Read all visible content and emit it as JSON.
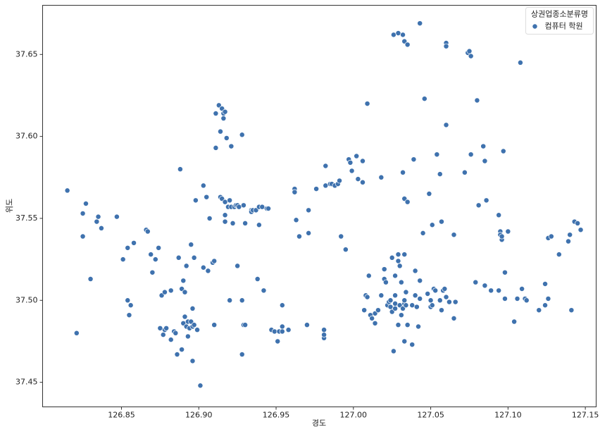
{
  "chart_data": {
    "type": "scatter",
    "xlabel": "경도",
    "ylabel": "위도",
    "legend_title": "상권업종소분류명",
    "legend_loc": "upper right",
    "xlim": [
      126.799,
      127.157
    ],
    "ylim": [
      37.435,
      37.68
    ],
    "xticks": [
      126.85,
      {
        "value": 126.9,
        "label": "126.90"
      },
      126.95,
      {
        "value": 127.0,
        "label": "127.00"
      },
      127.05,
      {
        "value": 127.1,
        "label": "127.10"
      },
      127.15
    ],
    "yticks": [
      37.45,
      {
        "value": 37.5,
        "label": "37.50"
      },
      37.55,
      {
        "value": 37.6,
        "label": "37.60"
      },
      37.65
    ],
    "x": [
      126.815,
      126.821,
      126.825,
      126.825,
      126.827,
      126.83,
      126.834,
      126.835,
      126.837,
      126.847,
      126.851,
      126.854,
      126.854,
      126.855,
      126.856,
      126.858,
      126.866,
      126.867,
      126.869,
      126.87,
      126.872,
      126.874,
      126.875,
      126.876,
      126.877,
      126.878,
      126.878,
      126.879,
      126.882,
      126.882,
      126.884,
      126.885,
      126.886,
      126.887,
      126.888,
      126.889,
      126.889,
      126.89,
      126.89,
      126.891,
      126.891,
      126.892,
      126.892,
      126.893,
      126.893,
      126.894,
      126.895,
      126.895,
      126.896,
      126.896,
      126.896,
      126.897,
      126.897,
      126.898,
      126.899,
      126.901,
      126.903,
      126.903,
      126.905,
      126.906,
      126.907,
      126.909,
      126.91,
      126.91,
      126.911,
      126.911,
      126.913,
      126.914,
      126.914,
      126.915,
      126.915,
      126.916,
      126.916,
      126.917,
      126.917,
      126.917,
      126.917,
      126.918,
      126.919,
      126.92,
      126.92,
      126.921,
      126.921,
      126.922,
      126.923,
      126.924,
      126.925,
      126.925,
      126.926,
      126.928,
      126.928,
      126.928,
      126.929,
      126.929,
      126.93,
      126.93,
      126.934,
      126.934,
      126.935,
      126.937,
      126.938,
      126.939,
      126.939,
      126.941,
      126.942,
      126.944,
      126.945,
      126.947,
      126.949,
      126.951,
      126.952,
      126.954,
      126.954,
      126.954,
      126.958,
      126.962,
      126.962,
      126.963,
      126.965,
      126.97,
      126.971,
      126.971,
      126.976,
      126.981,
      126.981,
      126.981,
      126.981,
      126.982,
      126.982,
      126.985,
      126.986,
      126.988,
      126.99,
      126.991,
      126.992,
      126.995,
      126.997,
      126.998,
      126.999,
      127.002,
      127.003,
      127.006,
      127.006,
      127.007,
      127.008,
      127.009,
      127.009,
      127.01,
      127.011,
      127.012,
      127.014,
      127.014,
      127.016,
      127.018,
      127.018,
      127.02,
      127.02,
      127.021,
      127.022,
      127.023,
      127.024,
      127.024,
      127.025,
      127.025,
      127.026,
      127.026,
      127.027,
      127.027,
      127.027,
      127.027,
      127.029,
      127.029,
      127.029,
      127.029,
      127.03,
      127.03,
      127.031,
      127.031,
      127.032,
      127.032,
      127.032,
      127.033,
      127.033,
      127.033,
      127.033,
      127.033,
      127.033,
      127.034,
      127.034,
      127.035,
      127.035,
      127.035,
      127.038,
      127.038,
      127.039,
      127.04,
      127.04,
      127.041,
      127.042,
      127.043,
      127.043,
      127.043,
      127.045,
      127.046,
      127.048,
      127.049,
      127.05,
      127.05,
      127.051,
      127.051,
      127.052,
      127.053,
      127.054,
      127.056,
      127.056,
      127.057,
      127.057,
      127.058,
      127.059,
      127.06,
      127.06,
      127.06,
      127.06,
      127.062,
      127.065,
      127.065,
      127.066,
      127.072,
      127.074,
      127.075,
      127.076,
      127.076,
      127.079,
      127.08,
      127.081,
      127.084,
      127.085,
      127.085,
      127.086,
      127.089,
      127.094,
      127.094,
      127.095,
      127.095,
      127.096,
      127.096,
      127.097,
      127.098,
      127.098,
      127.1,
      127.104,
      127.106,
      127.108,
      127.109,
      127.111,
      127.112,
      127.12,
      127.124,
      127.124,
      127.126,
      127.126,
      127.128,
      127.133,
      127.139,
      127.14,
      127.141,
      127.143,
      127.145,
      127.147
    ],
    "series": [
      {
        "name": "컴퓨터 학원",
        "color": "#3f72ae",
        "values": [
          37.567,
          37.48,
          37.553,
          37.539,
          37.559,
          37.513,
          37.548,
          37.551,
          37.544,
          37.551,
          37.525,
          37.5,
          37.532,
          37.491,
          37.497,
          37.535,
          37.543,
          37.542,
          37.528,
          37.517,
          37.525,
          37.532,
          37.483,
          37.503,
          37.479,
          37.505,
          37.482,
          37.483,
          37.506,
          37.476,
          37.481,
          37.48,
          37.467,
          37.526,
          37.58,
          37.507,
          37.47,
          37.512,
          37.486,
          37.505,
          37.49,
          37.521,
          37.484,
          37.478,
          37.487,
          37.483,
          37.534,
          37.487,
          37.463,
          37.484,
          37.495,
          37.526,
          37.485,
          37.561,
          37.482,
          37.448,
          37.52,
          37.57,
          37.563,
          37.518,
          37.55,
          37.523,
          37.524,
          37.485,
          37.614,
          37.593,
          37.619,
          37.603,
          37.563,
          37.562,
          37.617,
          37.611,
          37.614,
          37.548,
          37.552,
          37.615,
          37.56,
          37.599,
          37.557,
          37.561,
          37.5,
          37.594,
          37.557,
          37.547,
          37.557,
          37.558,
          37.521,
          37.558,
          37.557,
          37.601,
          37.5,
          37.467,
          37.485,
          37.558,
          37.485,
          37.547,
          37.555,
          37.554,
          37.555,
          37.555,
          37.513,
          37.546,
          37.557,
          37.557,
          37.506,
          37.556,
          37.556,
          37.482,
          37.481,
          37.475,
          37.481,
          37.497,
          37.484,
          37.481,
          37.482,
          37.568,
          37.566,
          37.549,
          37.539,
          37.485,
          37.541,
          37.555,
          37.568,
          37.477,
          37.479,
          37.482,
          37.482,
          37.582,
          37.57,
          37.571,
          37.571,
          37.57,
          37.571,
          37.573,
          37.539,
          37.531,
          37.586,
          37.584,
          37.579,
          37.588,
          37.574,
          37.585,
          37.572,
          37.494,
          37.503,
          37.502,
          37.62,
          37.515,
          37.491,
          37.489,
          37.492,
          37.486,
          37.494,
          37.575,
          37.503,
          37.513,
          37.519,
          37.511,
          37.497,
          37.499,
          37.496,
          37.5,
          37.526,
          37.493,
          37.469,
          37.662,
          37.495,
          37.503,
          37.515,
          37.498,
          37.528,
          37.663,
          37.485,
          37.524,
          37.521,
          37.497,
          37.511,
          37.491,
          37.578,
          37.662,
          37.495,
          37.562,
          37.498,
          37.5,
          37.528,
          37.658,
          37.475,
          37.505,
          37.497,
          37.656,
          37.56,
          37.485,
          37.497,
          37.473,
          37.586,
          37.518,
          37.503,
          37.496,
          37.484,
          37.501,
          37.669,
          37.512,
          37.541,
          37.623,
          37.504,
          37.565,
          37.5,
          37.496,
          37.497,
          37.546,
          37.507,
          37.506,
          37.589,
          37.577,
          37.5,
          37.494,
          37.548,
          37.506,
          37.507,
          37.657,
          37.655,
          37.607,
          37.502,
          37.499,
          37.54,
          37.489,
          37.499,
          37.578,
          37.651,
          37.652,
          37.589,
          37.649,
          37.511,
          37.622,
          37.558,
          37.594,
          37.585,
          37.509,
          37.561,
          37.506,
          37.552,
          37.506,
          37.542,
          37.54,
          37.537,
          37.539,
          37.591,
          37.517,
          37.501,
          37.542,
          37.487,
          37.501,
          37.645,
          37.507,
          37.501,
          37.5,
          37.494,
          37.51,
          37.497,
          37.501,
          37.538,
          37.539,
          37.528,
          37.536,
          37.54,
          37.494,
          37.548,
          37.547,
          37.543
        ]
      }
    ]
  }
}
